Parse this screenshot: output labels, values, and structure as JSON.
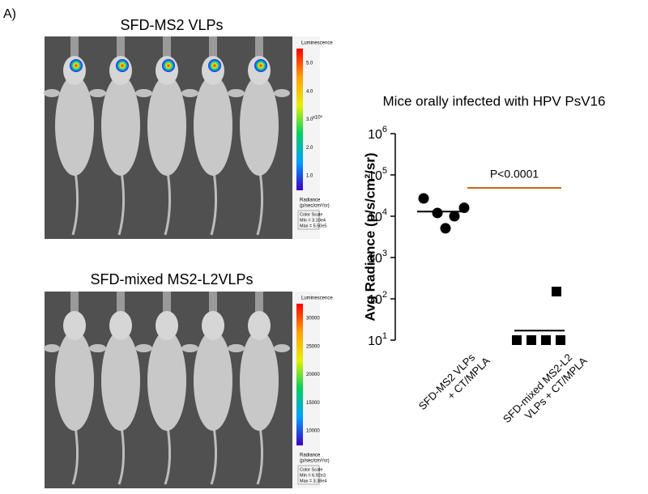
{
  "panel_label": "A)",
  "images": [
    {
      "title": "SFD-MS2 VLPs",
      "colorbar_title": "Luminescence",
      "colorbar_ticks": [
        "5.0",
        "4.0",
        "3.0",
        "2.0",
        "1.0"
      ],
      "colorbar_multiplier": "x10⁵",
      "unit_lines": [
        "Radiance",
        "(p/sec/cm²/sr)"
      ],
      "scale_lines": [
        "Color Scale",
        "Min = 3.10e4",
        "Max = 5.50e5"
      ]
    },
    {
      "title": "SFD-mixed MS2-L2VLPs",
      "colorbar_title": "Luminescence",
      "colorbar_ticks": [
        "30000",
        "25000",
        "20000",
        "15000",
        "10000"
      ],
      "unit_lines": [
        "Radiance",
        "(p/sec/cm²/sr)"
      ],
      "scale_lines": [
        "Color Scale",
        "Min = 6.92e3",
        "Max = 3.38e4"
      ]
    }
  ],
  "chart_data": {
    "type": "scatter",
    "title": "Mice orally infected with HPV PsV16",
    "y_label": "Avg Radiance (p/s/cm²/sr)",
    "log_y": true,
    "ylim": [
      10,
      1000000
    ],
    "yticks": [
      {
        "value": 10,
        "label": "10",
        "superscript": "1"
      },
      {
        "value": 100,
        "label": "10",
        "superscript": "2"
      },
      {
        "value": 1000,
        "label": "10",
        "superscript": "3"
      },
      {
        "value": 10000,
        "label": "10",
        "superscript": "4"
      },
      {
        "value": 100000,
        "label": "10",
        "superscript": "5"
      },
      {
        "value": 1000000,
        "label": "10",
        "superscript": "6"
      }
    ],
    "categories": [
      [
        "SFD-MS2 VLPs",
        "+ CT/MPLA"
      ],
      [
        "SFD-mixed MS2-L2",
        "VLPs + CT/MPLA"
      ]
    ],
    "series": [
      {
        "marker": "circle",
        "color": "#000000",
        "values": [
          27000,
          12000,
          5100,
          10000,
          16000
        ],
        "mean": 13000
      },
      {
        "marker": "square",
        "color": "#000000",
        "values": [
          10,
          10,
          10,
          150,
          10
        ],
        "mean": 17
      }
    ],
    "annotation": {
      "text": "P<0.0001",
      "color": "#d0661f"
    }
  }
}
